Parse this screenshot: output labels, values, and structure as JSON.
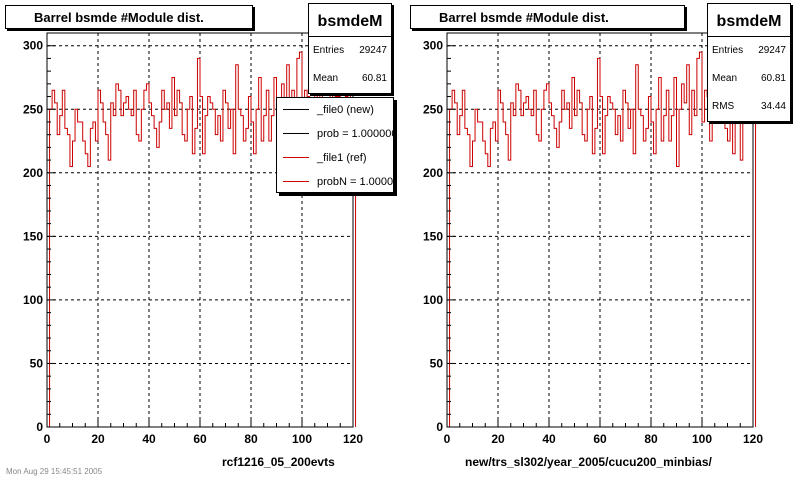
{
  "chart_data": [
    {
      "type": "histogram",
      "title": "Barrel bsmde #Module dist.",
      "xlabel": "rcf1216_05_200evts",
      "ylabel": "",
      "xlim": [
        0,
        120
      ],
      "ylim": [
        0,
        310
      ],
      "x_ticks": [
        "0",
        "20",
        "40",
        "60",
        "80",
        "100",
        "120"
      ],
      "y_ticks": [
        "0",
        "50",
        "100",
        "150",
        "200",
        "250",
        "300"
      ],
      "grid": true,
      "bin_width": 1,
      "series": [
        {
          "name": "_file0 (new)",
          "color": "#000000"
        },
        {
          "name": "_file1 (ref)",
          "color": "#cc0000"
        }
      ],
      "values": [
        0,
        250,
        265,
        255,
        230,
        245,
        265,
        235,
        230,
        205,
        225,
        250,
        240,
        240,
        225,
        215,
        205,
        235,
        240,
        225,
        265,
        255,
        240,
        230,
        210,
        255,
        245,
        270,
        265,
        245,
        255,
        260,
        250,
        245,
        265,
        230,
        225,
        250,
        265,
        270,
        255,
        245,
        235,
        220,
        240,
        265,
        250,
        255,
        235,
        275,
        245,
        265,
        255,
        230,
        225,
        250,
        260,
        215,
        235,
        290,
        260,
        215,
        245,
        260,
        255,
        250,
        230,
        245,
        225,
        265,
        255,
        235,
        250,
        215,
        285,
        250,
        245,
        225,
        235,
        260,
        240,
        215,
        250,
        275,
        225,
        245,
        265,
        225,
        245,
        275,
        205,
        250,
        270,
        255,
        285,
        230,
        265,
        245,
        290,
        295,
        240,
        265,
        260,
        225,
        255,
        275,
        245,
        285,
        250,
        235,
        225,
        270,
        215,
        260,
        260,
        210,
        240,
        260,
        245,
        280,
        240
      ],
      "stats": {
        "name": "bsmdeM",
        "entries_label": "Entries",
        "entries": "29247",
        "mean_label": "Mean",
        "mean": "60.81"
      },
      "legend": [
        {
          "label": "_file0 (new)",
          "color": "#000000"
        },
        {
          "label": "prob = 1.000000",
          "color": "#000000"
        },
        {
          "label": "_file1 (ref)",
          "color": "#cc0000"
        },
        {
          "label": "probN = 1.000000",
          "color": "#cc0000"
        }
      ]
    },
    {
      "type": "histogram",
      "title": "Barrel bsmde #Module dist.",
      "xlabel": "new/trs_sl302/year_2005/cucu200_minbias/",
      "ylabel": "",
      "xlim": [
        0,
        120
      ],
      "ylim": [
        0,
        310
      ],
      "x_ticks": [
        "0",
        "20",
        "40",
        "60",
        "80",
        "100",
        "120"
      ],
      "y_ticks": [
        "0",
        "50",
        "100",
        "150",
        "200",
        "250",
        "300"
      ],
      "grid": true,
      "bin_width": 1,
      "series": [
        {
          "name": "_file1 (ref)",
          "color": "#cc0000"
        }
      ],
      "values": [
        0,
        250,
        265,
        255,
        230,
        245,
        265,
        235,
        230,
        205,
        225,
        250,
        240,
        240,
        225,
        215,
        205,
        235,
        240,
        225,
        265,
        255,
        240,
        230,
        210,
        255,
        245,
        270,
        265,
        245,
        255,
        260,
        250,
        245,
        265,
        230,
        225,
        250,
        265,
        270,
        255,
        245,
        235,
        220,
        240,
        265,
        250,
        255,
        235,
        275,
        245,
        265,
        255,
        230,
        225,
        250,
        260,
        215,
        235,
        290,
        260,
        215,
        245,
        260,
        255,
        250,
        230,
        245,
        225,
        265,
        255,
        235,
        250,
        215,
        285,
        250,
        245,
        225,
        235,
        260,
        240,
        215,
        250,
        275,
        225,
        245,
        265,
        225,
        245,
        275,
        205,
        250,
        270,
        255,
        285,
        230,
        265,
        245,
        290,
        295,
        240,
        265,
        260,
        225,
        255,
        275,
        245,
        285,
        250,
        235,
        225,
        270,
        215,
        260,
        260,
        210,
        240,
        260,
        245,
        280,
        240
      ],
      "stats": {
        "name": "bsmdeM",
        "entries_label": "Entries",
        "entries": "29247",
        "mean_label": "Mean",
        "mean": "60.81",
        "rms_label": "RMS",
        "rms": "34.44"
      }
    }
  ],
  "footer": "Mon Aug 29 15:45:51 2005"
}
